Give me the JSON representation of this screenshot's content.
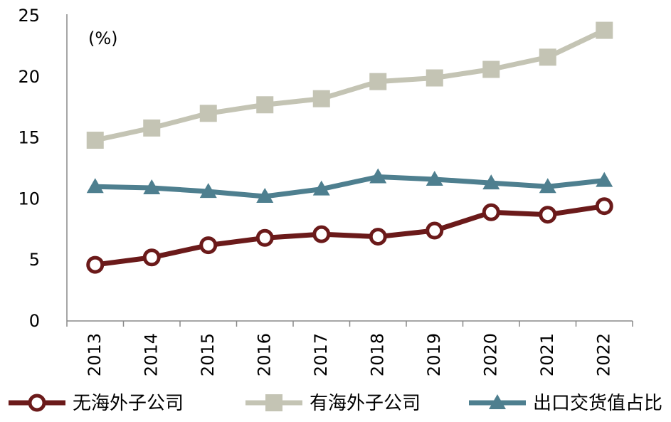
{
  "chart_data": {
    "type": "line",
    "unit_label": "(%)",
    "categories": [
      "2013",
      "2014",
      "2015",
      "2016",
      "2017",
      "2018",
      "2019",
      "2020",
      "2021",
      "2022"
    ],
    "ylim": [
      0,
      25
    ],
    "yticks": [
      0,
      5,
      10,
      15,
      20,
      25
    ],
    "grid": false,
    "legend_position": "bottom",
    "series": [
      {
        "name": "无海外子公司",
        "color": "#6b1a1a",
        "marker": "circle",
        "values": [
          4.6,
          5.2,
          6.2,
          6.8,
          7.1,
          6.9,
          7.4,
          8.9,
          8.7,
          9.4
        ]
      },
      {
        "name": "有海外子公司",
        "color": "#c4c4b4",
        "marker": "square",
        "values": [
          14.8,
          15.8,
          17.0,
          17.7,
          18.2,
          19.6,
          19.9,
          20.6,
          21.6,
          23.8
        ]
      },
      {
        "name": "出口交货值占比",
        "color": "#4e7f8f",
        "marker": "triangle",
        "values": [
          11.0,
          10.9,
          10.6,
          10.2,
          10.8,
          11.8,
          11.6,
          11.3,
          11.0,
          11.5
        ]
      }
    ]
  }
}
